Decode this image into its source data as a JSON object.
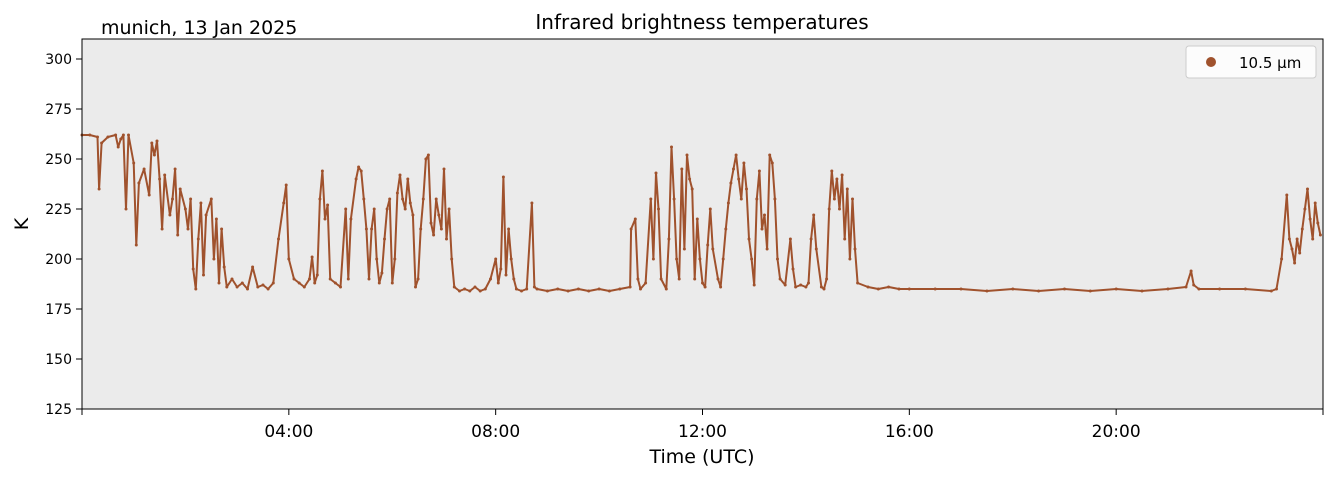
{
  "chart_data": {
    "type": "scatter",
    "title": "Infrared brightness temperatures",
    "location_date": "munich, 13 Jan 2025",
    "xlabel": "Time (UTC)",
    "ylabel": "K",
    "x_unit": "hours UTC",
    "xlim": [
      0,
      24
    ],
    "ylim": [
      125,
      310
    ],
    "x_ticks": [
      4,
      8,
      12,
      16,
      20
    ],
    "x_tick_labels": [
      "04:00",
      "08:00",
      "12:00",
      "16:00",
      "20:00"
    ],
    "y_ticks": [
      125,
      150,
      175,
      200,
      225,
      250,
      275,
      300
    ],
    "y_tick_labels": [
      "125",
      "150",
      "175",
      "200",
      "225",
      "250",
      "275",
      "300"
    ],
    "background_color": "#ebebeb",
    "grid": false,
    "legend_position": "top-right",
    "series": [
      {
        "name": "10.5 µm",
        "color": "#a0522d",
        "points": [
          [
            0.0,
            262
          ],
          [
            0.15,
            262
          ],
          [
            0.3,
            261
          ],
          [
            0.33,
            235
          ],
          [
            0.38,
            258
          ],
          [
            0.5,
            261
          ],
          [
            0.65,
            262
          ],
          [
            0.7,
            256
          ],
          [
            0.75,
            260
          ],
          [
            0.8,
            262
          ],
          [
            0.85,
            225
          ],
          [
            0.9,
            262
          ],
          [
            1.0,
            248
          ],
          [
            1.05,
            207
          ],
          [
            1.1,
            238
          ],
          [
            1.2,
            245
          ],
          [
            1.3,
            232
          ],
          [
            1.35,
            258
          ],
          [
            1.4,
            252
          ],
          [
            1.45,
            259
          ],
          [
            1.5,
            240
          ],
          [
            1.55,
            215
          ],
          [
            1.6,
            242
          ],
          [
            1.7,
            222
          ],
          [
            1.75,
            230
          ],
          [
            1.8,
            245
          ],
          [
            1.85,
            212
          ],
          [
            1.9,
            235
          ],
          [
            2.0,
            225
          ],
          [
            2.05,
            215
          ],
          [
            2.1,
            230
          ],
          [
            2.15,
            195
          ],
          [
            2.2,
            185
          ],
          [
            2.25,
            210
          ],
          [
            2.3,
            228
          ],
          [
            2.35,
            192
          ],
          [
            2.4,
            222
          ],
          [
            2.5,
            230
          ],
          [
            2.55,
            200
          ],
          [
            2.6,
            220
          ],
          [
            2.65,
            188
          ],
          [
            2.7,
            215
          ],
          [
            2.75,
            196
          ],
          [
            2.8,
            186
          ],
          [
            2.9,
            190
          ],
          [
            3.0,
            186
          ],
          [
            3.1,
            188
          ],
          [
            3.2,
            185
          ],
          [
            3.3,
            196
          ],
          [
            3.4,
            186
          ],
          [
            3.5,
            187
          ],
          [
            3.6,
            185
          ],
          [
            3.7,
            188
          ],
          [
            3.8,
            210
          ],
          [
            3.9,
            228
          ],
          [
            3.95,
            237
          ],
          [
            4.0,
            200
          ],
          [
            4.1,
            190
          ],
          [
            4.2,
            188
          ],
          [
            4.3,
            186
          ],
          [
            4.4,
            190
          ],
          [
            4.45,
            201
          ],
          [
            4.5,
            188
          ],
          [
            4.55,
            192
          ],
          [
            4.6,
            230
          ],
          [
            4.65,
            244
          ],
          [
            4.7,
            220
          ],
          [
            4.75,
            227
          ],
          [
            4.8,
            190
          ],
          [
            4.9,
            188
          ],
          [
            5.0,
            186
          ],
          [
            5.1,
            225
          ],
          [
            5.15,
            190
          ],
          [
            5.2,
            220
          ],
          [
            5.3,
            240
          ],
          [
            5.35,
            246
          ],
          [
            5.4,
            244
          ],
          [
            5.45,
            230
          ],
          [
            5.5,
            215
          ],
          [
            5.55,
            190
          ],
          [
            5.6,
            215
          ],
          [
            5.65,
            225
          ],
          [
            5.7,
            200
          ],
          [
            5.75,
            188
          ],
          [
            5.8,
            193
          ],
          [
            5.85,
            210
          ],
          [
            5.9,
            225
          ],
          [
            5.95,
            230
          ],
          [
            6.0,
            188
          ],
          [
            6.05,
            200
          ],
          [
            6.1,
            233
          ],
          [
            6.15,
            242
          ],
          [
            6.2,
            230
          ],
          [
            6.25,
            225
          ],
          [
            6.3,
            240
          ],
          [
            6.35,
            228
          ],
          [
            6.4,
            222
          ],
          [
            6.45,
            186
          ],
          [
            6.5,
            190
          ],
          [
            6.55,
            215
          ],
          [
            6.6,
            230
          ],
          [
            6.65,
            250
          ],
          [
            6.7,
            252
          ],
          [
            6.75,
            218
          ],
          [
            6.8,
            212
          ],
          [
            6.85,
            230
          ],
          [
            6.9,
            222
          ],
          [
            6.95,
            215
          ],
          [
            7.0,
            245
          ],
          [
            7.05,
            210
          ],
          [
            7.1,
            225
          ],
          [
            7.15,
            200
          ],
          [
            7.2,
            186
          ],
          [
            7.3,
            184
          ],
          [
            7.4,
            185
          ],
          [
            7.5,
            184
          ],
          [
            7.6,
            186
          ],
          [
            7.7,
            184
          ],
          [
            7.8,
            185
          ],
          [
            7.9,
            190
          ],
          [
            8.0,
            200
          ],
          [
            8.05,
            188
          ],
          [
            8.1,
            195
          ],
          [
            8.15,
            241
          ],
          [
            8.2,
            192
          ],
          [
            8.25,
            215
          ],
          [
            8.3,
            200
          ],
          [
            8.35,
            190
          ],
          [
            8.4,
            185
          ],
          [
            8.5,
            184
          ],
          [
            8.6,
            185
          ],
          [
            8.7,
            228
          ],
          [
            8.75,
            186
          ],
          [
            8.8,
            185
          ],
          [
            9.0,
            184
          ],
          [
            9.2,
            185
          ],
          [
            9.4,
            184
          ],
          [
            9.6,
            185
          ],
          [
            9.8,
            184
          ],
          [
            10.0,
            185
          ],
          [
            10.2,
            184
          ],
          [
            10.4,
            185
          ],
          [
            10.6,
            186
          ],
          [
            10.62,
            215
          ],
          [
            10.7,
            220
          ],
          [
            10.75,
            190
          ],
          [
            10.8,
            185
          ],
          [
            10.9,
            188
          ],
          [
            11.0,
            230
          ],
          [
            11.05,
            200
          ],
          [
            11.1,
            243
          ],
          [
            11.15,
            225
          ],
          [
            11.2,
            190
          ],
          [
            11.3,
            185
          ],
          [
            11.35,
            210
          ],
          [
            11.4,
            256
          ],
          [
            11.45,
            230
          ],
          [
            11.5,
            200
          ],
          [
            11.55,
            190
          ],
          [
            11.6,
            245
          ],
          [
            11.65,
            205
          ],
          [
            11.7,
            252
          ],
          [
            11.75,
            240
          ],
          [
            11.8,
            235
          ],
          [
            11.85,
            190
          ],
          [
            11.9,
            220
          ],
          [
            11.95,
            200
          ],
          [
            12.0,
            188
          ],
          [
            12.05,
            186
          ],
          [
            12.1,
            207
          ],
          [
            12.15,
            225
          ],
          [
            12.2,
            205
          ],
          [
            12.3,
            190
          ],
          [
            12.35,
            186
          ],
          [
            12.4,
            200
          ],
          [
            12.45,
            215
          ],
          [
            12.5,
            228
          ],
          [
            12.55,
            238
          ],
          [
            12.6,
            245
          ],
          [
            12.65,
            252
          ],
          [
            12.7,
            240
          ],
          [
            12.75,
            230
          ],
          [
            12.8,
            248
          ],
          [
            12.85,
            235
          ],
          [
            12.9,
            210
          ],
          [
            12.95,
            200
          ],
          [
            13.0,
            187
          ],
          [
            13.05,
            230
          ],
          [
            13.1,
            244
          ],
          [
            13.15,
            215
          ],
          [
            13.2,
            222
          ],
          [
            13.25,
            205
          ],
          [
            13.3,
            252
          ],
          [
            13.35,
            248
          ],
          [
            13.4,
            230
          ],
          [
            13.45,
            200
          ],
          [
            13.5,
            190
          ],
          [
            13.6,
            187
          ],
          [
            13.7,
            210
          ],
          [
            13.75,
            195
          ],
          [
            13.8,
            186
          ],
          [
            13.9,
            187
          ],
          [
            14.0,
            186
          ],
          [
            14.05,
            188
          ],
          [
            14.1,
            210
          ],
          [
            14.15,
            222
          ],
          [
            14.2,
            205
          ],
          [
            14.3,
            186
          ],
          [
            14.35,
            185
          ],
          [
            14.4,
            190
          ],
          [
            14.45,
            225
          ],
          [
            14.5,
            244
          ],
          [
            14.55,
            230
          ],
          [
            14.6,
            240
          ],
          [
            14.65,
            225
          ],
          [
            14.7,
            242
          ],
          [
            14.75,
            210
          ],
          [
            14.8,
            235
          ],
          [
            14.85,
            200
          ],
          [
            14.9,
            230
          ],
          [
            14.95,
            205
          ],
          [
            15.0,
            188
          ],
          [
            15.2,
            186
          ],
          [
            15.4,
            185
          ],
          [
            15.6,
            186
          ],
          [
            15.8,
            185
          ],
          [
            16.0,
            185
          ],
          [
            16.5,
            185
          ],
          [
            17.0,
            185
          ],
          [
            17.5,
            184
          ],
          [
            18.0,
            185
          ],
          [
            18.5,
            184
          ],
          [
            19.0,
            185
          ],
          [
            19.5,
            184
          ],
          [
            20.0,
            185
          ],
          [
            20.5,
            184
          ],
          [
            21.0,
            185
          ],
          [
            21.35,
            186
          ],
          [
            21.45,
            194
          ],
          [
            21.5,
            187
          ],
          [
            21.6,
            185
          ],
          [
            22.0,
            185
          ],
          [
            22.5,
            185
          ],
          [
            23.0,
            184
          ],
          [
            23.1,
            185
          ],
          [
            23.2,
            200
          ],
          [
            23.3,
            232
          ],
          [
            23.35,
            210
          ],
          [
            23.4,
            205
          ],
          [
            23.45,
            198
          ],
          [
            23.5,
            210
          ],
          [
            23.55,
            203
          ],
          [
            23.6,
            215
          ],
          [
            23.65,
            225
          ],
          [
            23.7,
            235
          ],
          [
            23.75,
            220
          ],
          [
            23.8,
            210
          ],
          [
            23.85,
            228
          ],
          [
            23.9,
            218
          ],
          [
            23.95,
            212
          ]
        ]
      }
    ]
  }
}
